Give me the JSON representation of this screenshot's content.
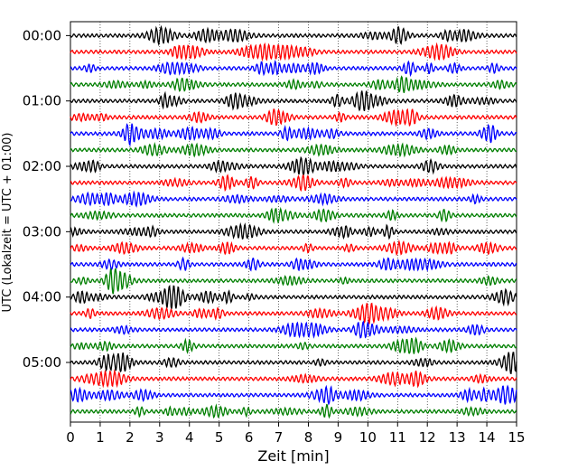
{
  "chart_data": {
    "type": "line",
    "title": "",
    "xlabel": "Zeit  [min]",
    "ylabel": "UTC (Lokalzeit = UTC + 01:00)",
    "xlim": [
      0,
      15
    ],
    "x_ticks": [
      "0",
      "1",
      "2",
      "3",
      "4",
      "5",
      "6",
      "7",
      "8",
      "9",
      "10",
      "11",
      "12",
      "13",
      "14",
      "15"
    ],
    "y_ticks": [
      {
        "label": "00:00",
        "row": 0
      },
      {
        "label": "01:00",
        "row": 4
      },
      {
        "label": "02:00",
        "row": 8
      },
      {
        "label": "03:00",
        "row": 12
      },
      {
        "label": "04:00",
        "row": 16
      },
      {
        "label": "05:00",
        "row": 20
      }
    ],
    "grid": "x",
    "colors": [
      "#000000",
      "#ff0000",
      "#0000ff",
      "#007f00"
    ],
    "rows": 24,
    "minutes_per_row": 15
  }
}
